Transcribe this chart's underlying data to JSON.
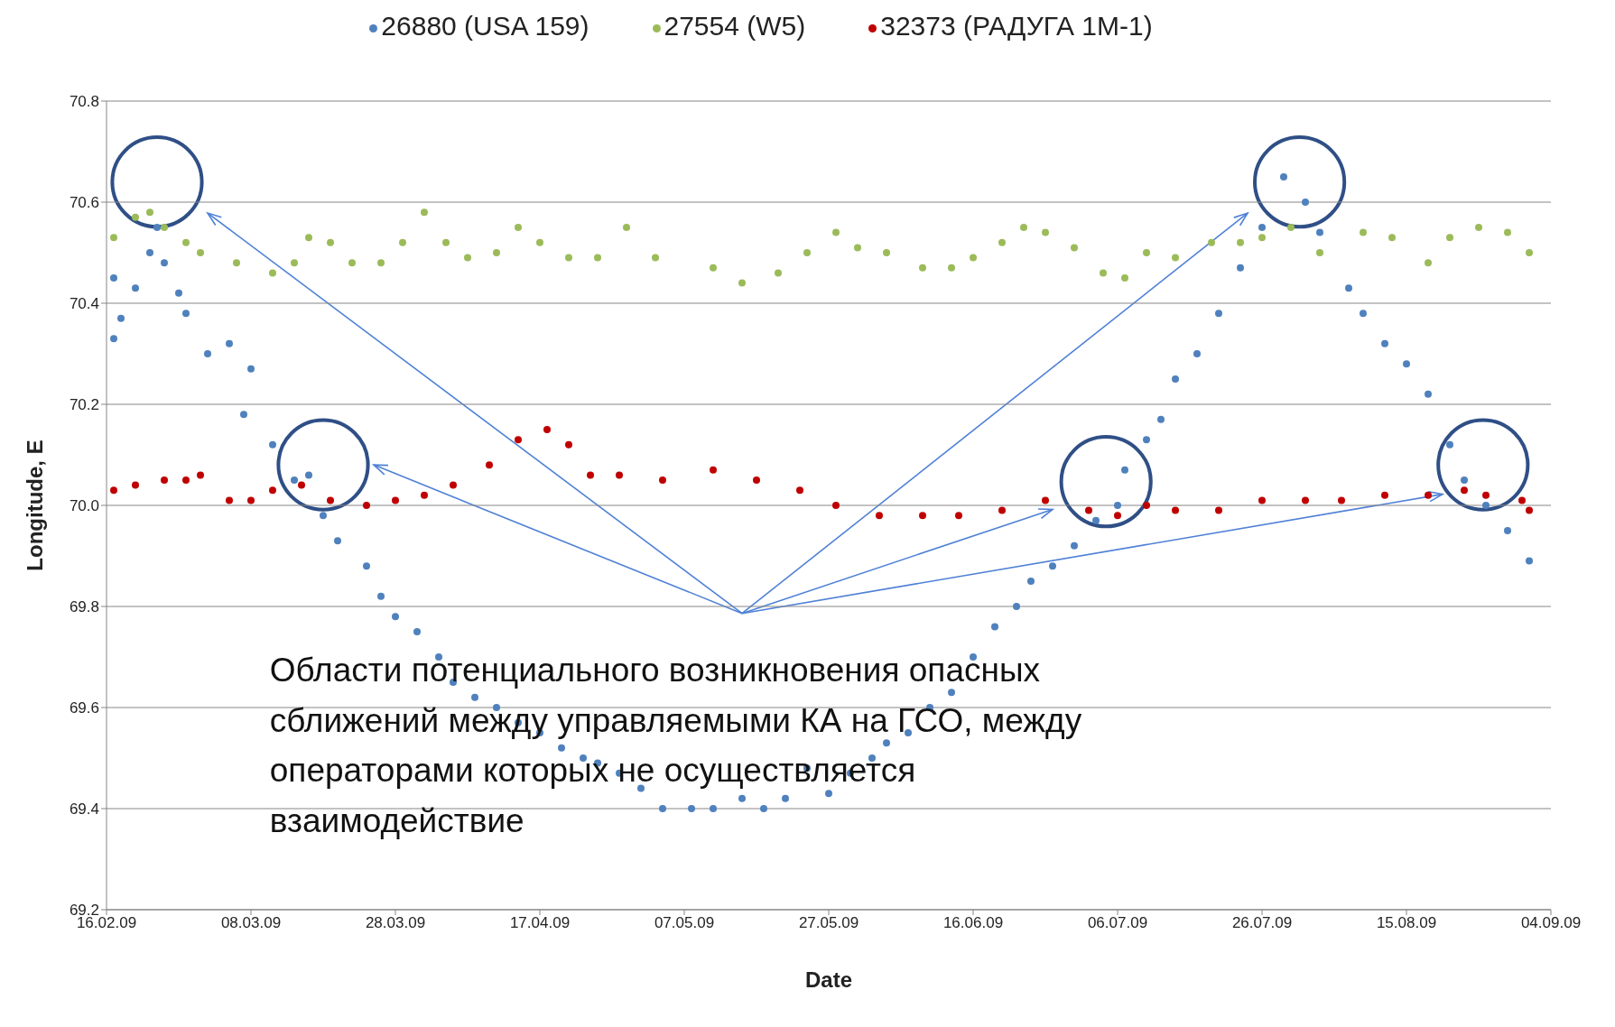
{
  "chart_data": {
    "type": "scatter",
    "xlabel": "Date",
    "ylabel": "Longitude, E",
    "legend": "top",
    "grid": "y",
    "marker": "circle",
    "xlim": [
      "2009-02-16",
      "2009-09-04"
    ],
    "xticks": [
      {
        "value": "2009-02-16",
        "label": "16.02.09"
      },
      {
        "value": "2009-03-08",
        "label": "08.03.09"
      },
      {
        "value": "2009-03-28",
        "label": "28.03.09"
      },
      {
        "value": "2009-04-17",
        "label": "17.04.09"
      },
      {
        "value": "2009-05-07",
        "label": "07.05.09"
      },
      {
        "value": "2009-05-27",
        "label": "27.05.09"
      },
      {
        "value": "2009-06-16",
        "label": "16.06.09"
      },
      {
        "value": "2009-07-06",
        "label": "06.07.09"
      },
      {
        "value": "2009-07-26",
        "label": "26.07.09"
      },
      {
        "value": "2009-08-15",
        "label": "15.08.09"
      },
      {
        "value": "2009-09-04",
        "label": "04.09.09"
      }
    ],
    "ylim": [
      69.2,
      70.8
    ],
    "yticks": [
      {
        "value": 69.2,
        "label": "69.2"
      },
      {
        "value": 69.4,
        "label": "69.4"
      },
      {
        "value": 69.6,
        "label": "69.6"
      },
      {
        "value": 69.8,
        "label": "69.8"
      },
      {
        "value": 70,
        "label": "70.0"
      },
      {
        "value": 70.2,
        "label": "70.2"
      },
      {
        "value": 70.4,
        "label": "70.4"
      },
      {
        "value": 70.6,
        "label": "70.6"
      },
      {
        "value": 70.8,
        "label": "70.8"
      }
    ],
    "annotations": [
      "Области потенциального возникновения опасных сближений между управляемыми КА на ГСО, между операторами которых не осуществляется взаимодействие"
    ],
    "series": [
      {
        "name": "26880 (USA 159)",
        "color": "#4f81bd",
        "x": [
          "2009-02-17",
          "2009-02-17",
          "2009-02-18",
          "2009-02-20",
          "2009-02-22",
          "2009-02-23",
          "2009-02-24",
          "2009-02-26",
          "2009-02-27",
          "2009-03-02",
          "2009-03-05",
          "2009-03-07",
          "2009-03-08",
          "2009-03-11",
          "2009-03-14",
          "2009-03-16",
          "2009-03-18",
          "2009-03-20",
          "2009-03-24",
          "2009-03-26",
          "2009-03-28",
          "2009-03-31",
          "2009-04-03",
          "2009-04-05",
          "2009-04-08",
          "2009-04-11",
          "2009-04-14",
          "2009-04-17",
          "2009-04-20",
          "2009-04-23",
          "2009-04-25",
          "2009-04-28",
          "2009-05-01",
          "2009-05-04",
          "2009-05-08",
          "2009-05-11",
          "2009-05-15",
          "2009-05-18",
          "2009-05-21",
          "2009-05-24",
          "2009-05-27",
          "2009-05-30",
          "2009-06-02",
          "2009-06-04",
          "2009-06-07",
          "2009-06-10",
          "2009-06-13",
          "2009-06-16",
          "2009-06-19",
          "2009-06-22",
          "2009-06-24",
          "2009-06-27",
          "2009-06-30",
          "2009-07-03",
          "2009-07-06",
          "2009-07-07",
          "2009-07-10",
          "2009-07-12",
          "2009-07-14",
          "2009-07-17",
          "2009-07-20",
          "2009-07-23",
          "2009-07-26",
          "2009-07-29",
          "2009-08-01",
          "2009-08-03",
          "2009-08-07",
          "2009-08-09",
          "2009-08-12",
          "2009-08-15",
          "2009-08-18",
          "2009-08-21",
          "2009-08-23",
          "2009-08-26",
          "2009-08-29",
          "2009-09-01"
        ],
        "values": [
          70.33,
          70.45,
          70.37,
          70.43,
          70.5,
          70.55,
          70.48,
          70.42,
          70.38,
          70.3,
          70.32,
          70.18,
          70.27,
          70.12,
          70.05,
          70.06,
          69.98,
          69.93,
          69.88,
          69.82,
          69.78,
          69.75,
          69.7,
          69.65,
          69.62,
          69.6,
          69.57,
          69.55,
          69.52,
          69.5,
          69.49,
          69.47,
          69.44,
          69.4,
          69.4,
          69.4,
          69.42,
          69.4,
          69.42,
          69.48,
          69.43,
          69.47,
          69.5,
          69.53,
          69.55,
          69.6,
          69.63,
          69.7,
          69.76,
          69.8,
          69.85,
          69.88,
          69.92,
          69.97,
          70.0,
          70.07,
          70.13,
          70.17,
          70.25,
          70.3,
          70.38,
          70.47,
          70.55,
          70.65,
          70.6,
          70.54,
          70.43,
          70.38,
          70.32,
          70.28,
          70.22,
          70.12,
          70.05,
          70.0,
          69.95,
          69.89
        ]
      },
      {
        "name": "27554 (W5)",
        "color": "#9bbb59",
        "x": [
          "2009-02-17",
          "2009-02-20",
          "2009-02-22",
          "2009-02-24",
          "2009-02-27",
          "2009-03-01",
          "2009-03-06",
          "2009-03-11",
          "2009-03-14",
          "2009-03-16",
          "2009-03-19",
          "2009-03-22",
          "2009-03-26",
          "2009-03-29",
          "2009-04-01",
          "2009-04-04",
          "2009-04-07",
          "2009-04-11",
          "2009-04-14",
          "2009-04-17",
          "2009-04-21",
          "2009-04-25",
          "2009-04-29",
          "2009-05-03",
          "2009-05-11",
          "2009-05-15",
          "2009-05-20",
          "2009-05-24",
          "2009-05-28",
          "2009-05-31",
          "2009-06-04",
          "2009-06-09",
          "2009-06-13",
          "2009-06-16",
          "2009-06-20",
          "2009-06-23",
          "2009-06-26",
          "2009-06-30",
          "2009-07-04",
          "2009-07-07",
          "2009-07-10",
          "2009-07-14",
          "2009-07-19",
          "2009-07-23",
          "2009-07-26",
          "2009-07-30",
          "2009-08-03",
          "2009-08-09",
          "2009-08-13",
          "2009-08-18",
          "2009-08-21",
          "2009-08-25",
          "2009-08-29",
          "2009-09-01"
        ],
        "values": [
          70.53,
          70.57,
          70.58,
          70.55,
          70.52,
          70.5,
          70.48,
          70.46,
          70.48,
          70.53,
          70.52,
          70.48,
          70.48,
          70.52,
          70.58,
          70.52,
          70.49,
          70.5,
          70.55,
          70.52,
          70.49,
          70.49,
          70.55,
          70.49,
          70.47,
          70.44,
          70.46,
          70.5,
          70.54,
          70.51,
          70.5,
          70.47,
          70.47,
          70.49,
          70.52,
          70.55,
          70.54,
          70.51,
          70.46,
          70.45,
          70.5,
          70.49,
          70.52,
          70.52,
          70.53,
          70.55,
          70.5,
          70.54,
          70.53,
          70.48,
          70.53,
          70.55,
          70.54,
          70.5
        ]
      },
      {
        "name": "32373 (РАДУГА 1М-1)",
        "color": "#c00000",
        "x": [
          "2009-02-17",
          "2009-02-20",
          "2009-02-24",
          "2009-02-27",
          "2009-03-01",
          "2009-03-05",
          "2009-03-08",
          "2009-03-11",
          "2009-03-15",
          "2009-03-19",
          "2009-03-24",
          "2009-03-28",
          "2009-04-01",
          "2009-04-05",
          "2009-04-10",
          "2009-04-14",
          "2009-04-18",
          "2009-04-21",
          "2009-04-24",
          "2009-04-28",
          "2009-05-04",
          "2009-05-11",
          "2009-05-17",
          "2009-05-23",
          "2009-05-28",
          "2009-06-03",
          "2009-06-09",
          "2009-06-14",
          "2009-06-20",
          "2009-06-26",
          "2009-07-02",
          "2009-07-06",
          "2009-07-10",
          "2009-07-14",
          "2009-07-20",
          "2009-07-26",
          "2009-08-01",
          "2009-08-06",
          "2009-08-12",
          "2009-08-18",
          "2009-08-23",
          "2009-08-26",
          "2009-08-31",
          "2009-09-01"
        ],
        "values": [
          70.03,
          70.04,
          70.05,
          70.05,
          70.06,
          70.01,
          70.01,
          70.03,
          70.04,
          70.01,
          70.0,
          70.01,
          70.02,
          70.04,
          70.08,
          70.13,
          70.15,
          70.12,
          70.06,
          70.06,
          70.05,
          70.07,
          70.05,
          70.03,
          70.0,
          69.98,
          69.98,
          69.98,
          69.99,
          70.01,
          69.99,
          69.98,
          70.0,
          69.99,
          69.99,
          70.01,
          70.01,
          70.01,
          70.02,
          70.02,
          70.03,
          70.02,
          70.01,
          69.99
        ]
      }
    ]
  }
}
